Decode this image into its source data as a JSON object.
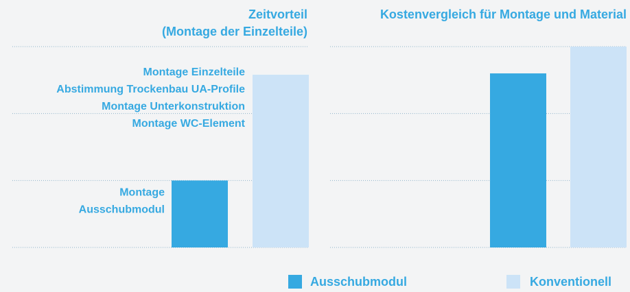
{
  "chart_data": [
    {
      "type": "bar",
      "title": [
        "Zeitvorteil",
        "(Montage der Einzelteile)"
      ],
      "series": [
        {
          "name": "Ausschubmodul",
          "color": "#36a9e1",
          "values": [
            1
          ]
        },
        {
          "name": "Konventionell",
          "color": "#cce3f7",
          "values": [
            2.58
          ]
        }
      ],
      "annotations": [
        [
          "Montage",
          "Ausschubmodul"
        ],
        [
          "Montage Einzelteile",
          "Abstimmung Trockenbau UA-Profile",
          "Montage Unterkonstruktion",
          "Montage WC-Element"
        ]
      ],
      "ylim": [
        0,
        3
      ],
      "yticks": [
        0,
        1,
        2,
        3
      ],
      "grid": true
    },
    {
      "type": "bar",
      "title": [
        "Kostenvergleich für Montage und Material"
      ],
      "series": [
        {
          "color": "#36a9e1",
          "values": [
            2.6
          ]
        },
        {
          "color": "#cce3f7",
          "values": [
            3
          ]
        }
      ],
      "ylim": [
        0,
        3
      ],
      "yticks": [
        0,
        1,
        2,
        3
      ],
      "grid": true
    }
  ]
}
